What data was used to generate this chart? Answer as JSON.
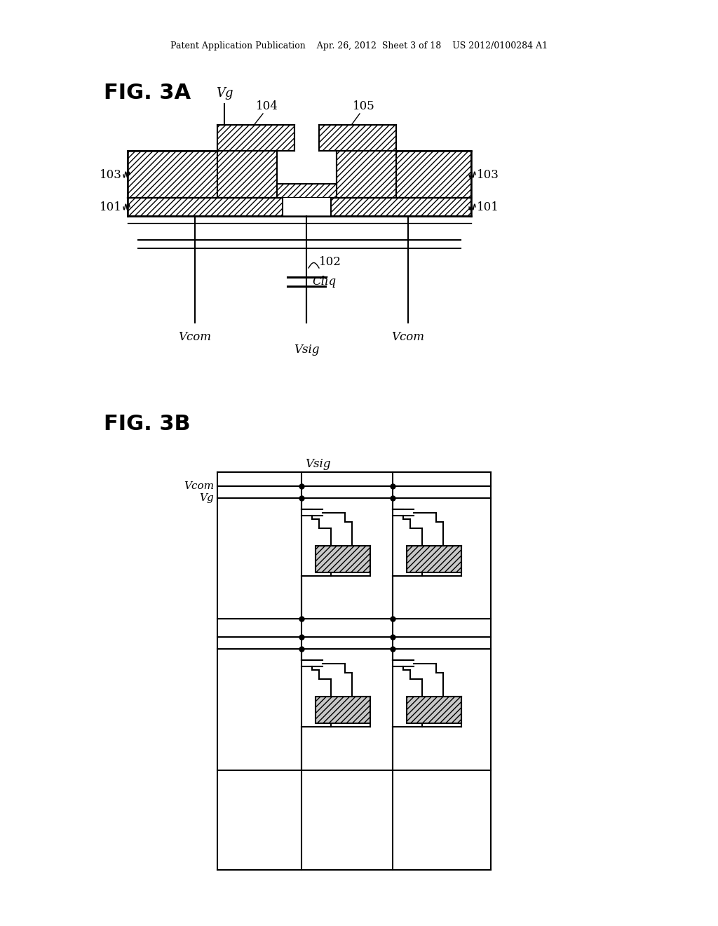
{
  "bg_color": "#ffffff",
  "header_text": "Patent Application Publication    Apr. 26, 2012  Sheet 3 of 18    US 2012/0100284 A1",
  "fig3a_label": "FIG. 3A",
  "fig3b_label": "FIG. 3B",
  "line_color": "#000000"
}
